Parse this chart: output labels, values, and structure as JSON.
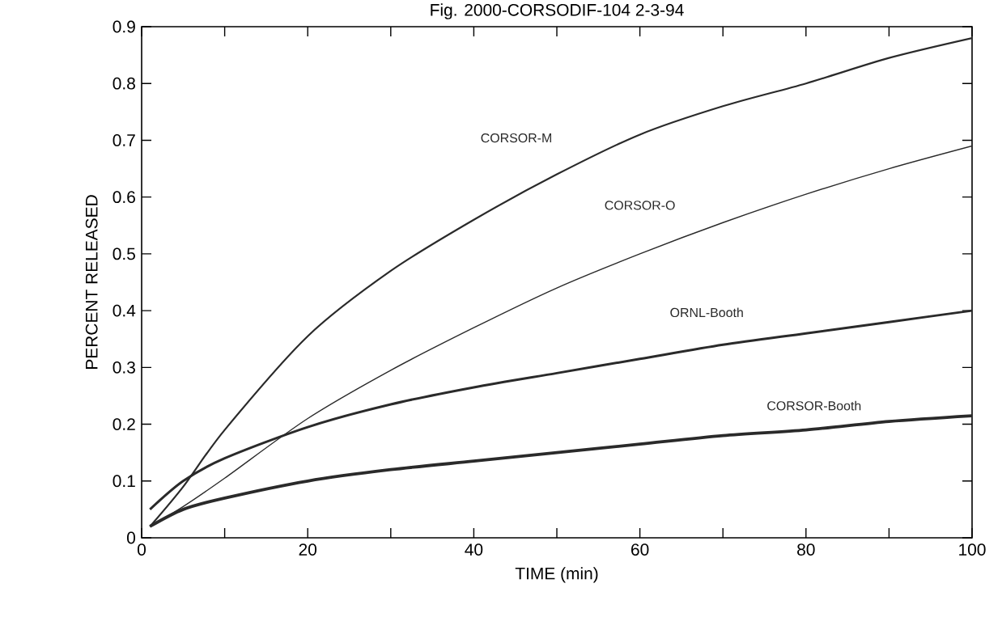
{
  "chart_data": {
    "type": "line",
    "title": "Fig. 2000-CORSODIF-104     2-3-94",
    "xlabel": "TIME (min)",
    "ylabel": "PERCENT RELEASED",
    "x": [
      1,
      5,
      10,
      20,
      30,
      40,
      50,
      60,
      70,
      80,
      90,
      100
    ],
    "series": [
      {
        "name": "CORSOR-M",
        "color": "#2a2a2a",
        "values": [
          0.02,
          0.09,
          0.19,
          0.355,
          0.47,
          0.56,
          0.64,
          0.71,
          0.76,
          0.8,
          0.845,
          0.88
        ]
      },
      {
        "name": "CORSOR-O",
        "color": "#2a2a2a",
        "values": [
          0.02,
          0.055,
          0.105,
          0.21,
          0.295,
          0.37,
          0.44,
          0.5,
          0.555,
          0.605,
          0.65,
          0.69
        ]
      },
      {
        "name": "ORNL-Booth",
        "color": "#2a2a2a",
        "values": [
          0.05,
          0.1,
          0.14,
          0.195,
          0.235,
          0.265,
          0.29,
          0.315,
          0.34,
          0.36,
          0.38,
          0.4
        ]
      },
      {
        "name": "CORSOR-Booth",
        "color": "#2a2a2a",
        "values": [
          0.02,
          0.05,
          0.07,
          0.1,
          0.12,
          0.135,
          0.15,
          0.165,
          0.18,
          0.19,
          0.205,
          0.215
        ]
      }
    ],
    "xlim": [
      0,
      100
    ],
    "ylim": [
      0,
      0.9
    ],
    "xticks": [
      0,
      {
        "value": 10,
        "label": null
      },
      20,
      {
        "value": 30,
        "label": null
      },
      40,
      {
        "value": 50,
        "label": null
      },
      60,
      {
        "value": 70,
        "label": null
      },
      80,
      {
        "value": 90,
        "label": null
      },
      100
    ],
    "yticks": [
      0,
      0.1,
      0.2,
      0.3,
      0.4,
      0.5,
      0.6,
      0.7,
      0.8,
      0.9
    ],
    "marker": "none",
    "line_style": "solid"
  }
}
